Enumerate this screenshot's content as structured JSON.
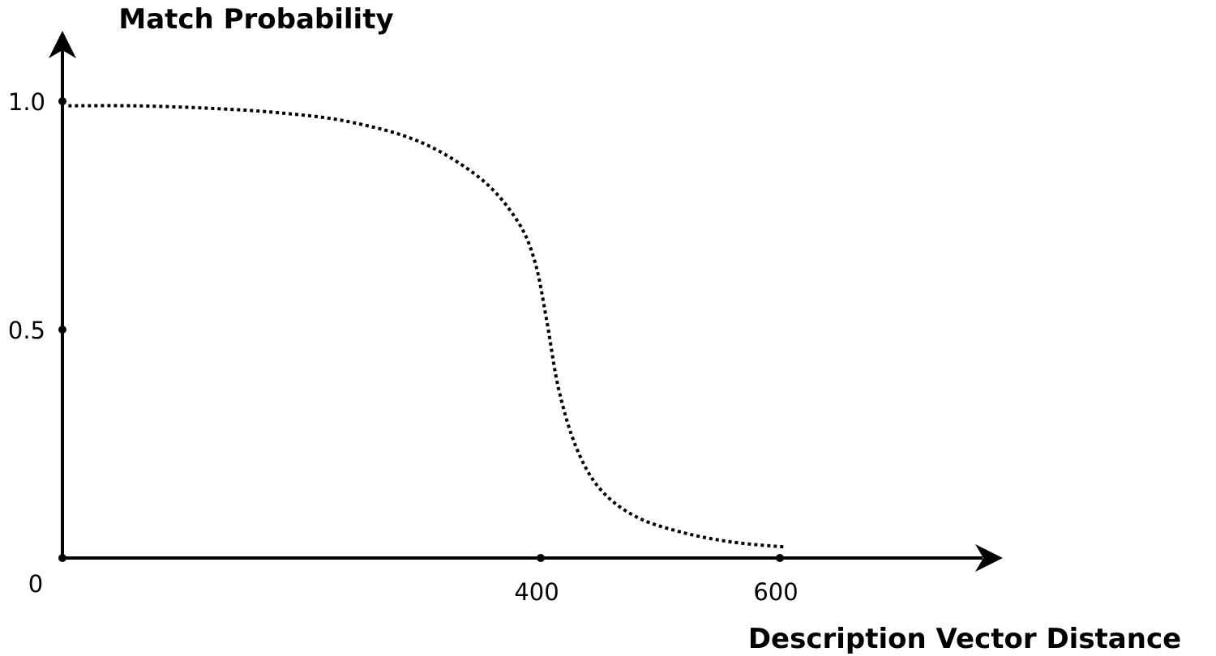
{
  "chart_data": {
    "type": "line",
    "title": "",
    "ylabel": "Match Probability",
    "xlabel": "Description Vector Distance",
    "origin_label": "0",
    "x_ticks": [
      {
        "value": 400,
        "label": "400"
      },
      {
        "value": 600,
        "label": "600"
      }
    ],
    "y_ticks": [
      {
        "value": 0.5,
        "label": "0.5"
      },
      {
        "value": 1.0,
        "label": "1.0"
      }
    ],
    "xlim": [
      0,
      640
    ],
    "ylim": [
      -0.02,
      1.15
    ],
    "grid": false,
    "line_style": "dotted",
    "color": "#000000",
    "series": [
      {
        "x": [
          5,
          60,
          120,
          180,
          240,
          300,
          350,
          380,
          395,
          405,
          415,
          430,
          450,
          480,
          520,
          560,
          600,
          605
        ],
        "y": [
          0.99,
          0.99,
          0.985,
          0.975,
          0.955,
          0.91,
          0.83,
          0.74,
          0.65,
          0.52,
          0.37,
          0.24,
          0.15,
          0.09,
          0.055,
          0.035,
          0.025,
          0.025
        ]
      }
    ]
  }
}
